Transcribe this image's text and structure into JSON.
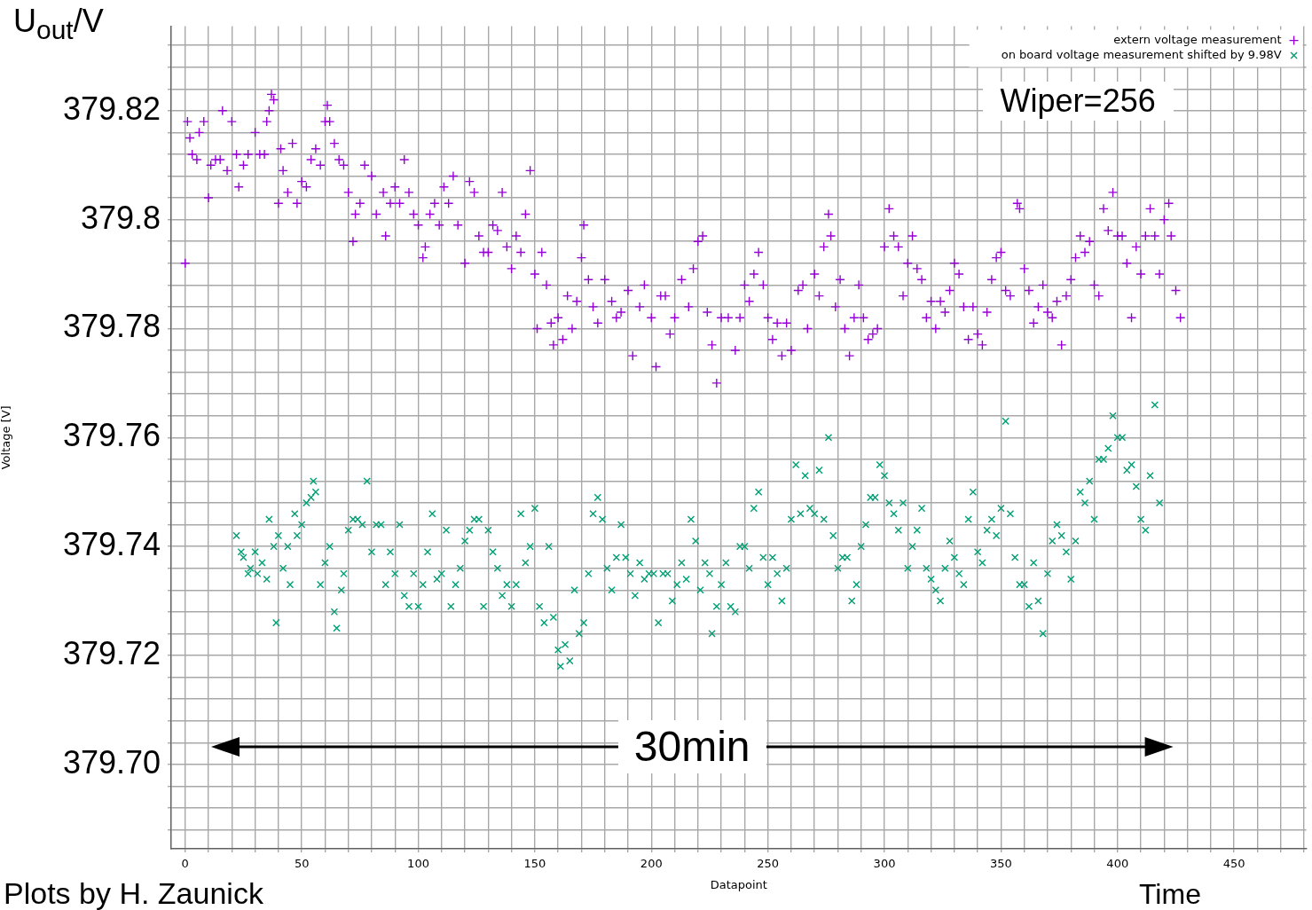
{
  "chart_data": {
    "type": "scatter",
    "xlabel": "Datapoint",
    "ylabel": "Voltage [V]",
    "legend": "top right",
    "grid": true,
    "annotations": [
      "U$_{out}$/V",
      "Wiper=256",
      "30min",
      "Plots by H. Zaunick",
      "Time"
    ],
    "xlim": [
      -6,
      481
    ],
    "xticks": [
      0,
      {
        "value": 10,
        "label": null
      },
      {
        "value": 20,
        "label": null
      },
      {
        "value": 30,
        "label": null
      },
      {
        "value": 40,
        "label": null
      },
      50,
      {
        "value": 60,
        "label": null
      },
      {
        "value": 70,
        "label": null
      },
      {
        "value": 80,
        "label": null
      },
      {
        "value": 90,
        "label": null
      },
      100,
      {
        "value": 110,
        "label": null
      },
      {
        "value": 120,
        "label": null
      },
      {
        "value": 130,
        "label": null
      },
      {
        "value": 140,
        "label": null
      },
      150,
      {
        "value": 160,
        "label": null
      },
      {
        "value": 170,
        "label": null
      },
      {
        "value": 180,
        "label": null
      },
      {
        "value": 190,
        "label": null
      },
      200,
      {
        "value": 210,
        "label": null
      },
      {
        "value": 220,
        "label": null
      },
      {
        "value": 230,
        "label": null
      },
      {
        "value": 240,
        "label": null
      },
      250,
      {
        "value": 260,
        "label": null
      },
      {
        "value": 270,
        "label": null
      },
      {
        "value": 280,
        "label": null
      },
      {
        "value": 290,
        "label": null
      },
      300,
      {
        "value": 310,
        "label": null
      },
      {
        "value": 320,
        "label": null
      },
      {
        "value": 330,
        "label": null
      },
      {
        "value": 340,
        "label": null
      },
      350,
      {
        "value": 360,
        "label": null
      },
      {
        "value": 370,
        "label": null
      },
      {
        "value": 380,
        "label": null
      },
      {
        "value": 390,
        "label": null
      },
      400,
      {
        "value": 410,
        "label": null
      },
      {
        "value": 420,
        "label": null
      },
      {
        "value": 430,
        "label": null
      },
      {
        "value": 440,
        "label": null
      },
      450,
      {
        "value": 460,
        "label": null
      },
      {
        "value": 470,
        "label": null
      },
      {
        "value": 480,
        "label": null
      }
    ],
    "ylim": [
      379.6845,
      379.8355
    ],
    "yticks": [
      {
        "value": 379.688,
        "label": null
      },
      {
        "value": 379.692,
        "label": null
      },
      {
        "value": 379.696,
        "label": null
      },
      {
        "value": 379.7,
        "label": "379.70"
      },
      {
        "value": 379.704,
        "label": null
      },
      {
        "value": 379.708,
        "label": null
      },
      {
        "value": 379.712,
        "label": null
      },
      {
        "value": 379.716,
        "label": null
      },
      379.72,
      {
        "value": 379.724,
        "label": null
      },
      {
        "value": 379.728,
        "label": null
      },
      {
        "value": 379.732,
        "label": null
      },
      {
        "value": 379.736,
        "label": null
      },
      379.74,
      {
        "value": 379.744,
        "label": null
      },
      {
        "value": 379.748,
        "label": null
      },
      {
        "value": 379.752,
        "label": null
      },
      {
        "value": 379.756,
        "label": null
      },
      379.76,
      {
        "value": 379.764,
        "label": null
      },
      {
        "value": 379.768,
        "label": null
      },
      {
        "value": 379.772,
        "label": null
      },
      {
        "value": 379.776,
        "label": null
      },
      379.78,
      {
        "value": 379.784,
        "label": null
      },
      {
        "value": 379.788,
        "label": null
      },
      {
        "value": 379.792,
        "label": null
      },
      {
        "value": 379.796,
        "label": null
      },
      379.8,
      {
        "value": 379.804,
        "label": null
      },
      {
        "value": 379.808,
        "label": null
      },
      {
        "value": 379.812,
        "label": null
      },
      {
        "value": 379.816,
        "label": null
      },
      379.82,
      {
        "value": 379.824,
        "label": null
      },
      {
        "value": 379.828,
        "label": null
      },
      {
        "value": 379.832,
        "label": null
      }
    ],
    "series": [
      {
        "name": "extern voltage measurement",
        "color": "#9400d3",
        "marker": "cross",
        "x": [
          0,
          1,
          2,
          3,
          5,
          6,
          8,
          10,
          11,
          13,
          15,
          16,
          18,
          20,
          22,
          23,
          25,
          27,
          30,
          32,
          34,
          35,
          36,
          37,
          38,
          40,
          41,
          42,
          44,
          46,
          48,
          50,
          52,
          54,
          56,
          58,
          60,
          61,
          62,
          64,
          66,
          68,
          70,
          72,
          73,
          75,
          77,
          80,
          82,
          85,
          86,
          88,
          90,
          92,
          94,
          96,
          98,
          100,
          102,
          103,
          105,
          107,
          109,
          111,
          113,
          115,
          117,
          120,
          122,
          124,
          126,
          128,
          130,
          132,
          134,
          136,
          138,
          140,
          142,
          144,
          146,
          148,
          150,
          151,
          153,
          155,
          157,
          158,
          160,
          162,
          164,
          166,
          168,
          170,
          171,
          173,
          175,
          177,
          180,
          183,
          185,
          187,
          190,
          192,
          195,
          197,
          200,
          202,
          204,
          206,
          208,
          210,
          213,
          216,
          218,
          220,
          222,
          224,
          226,
          228,
          230,
          233,
          236,
          238,
          240,
          242,
          244,
          246,
          248,
          250,
          252,
          254,
          256,
          258,
          260,
          263,
          265,
          267,
          270,
          272,
          274,
          276,
          277,
          279,
          281,
          283,
          285,
          287,
          289,
          291,
          293,
          295,
          297,
          300,
          302,
          304,
          306,
          308,
          310,
          312,
          314,
          316,
          318,
          320,
          322,
          324,
          326,
          328,
          330,
          332,
          334,
          336,
          338,
          340,
          342,
          344,
          346,
          348,
          350,
          352,
          354,
          357,
          358,
          360,
          362,
          364,
          366,
          368,
          370,
          372,
          374,
          376,
          378,
          380,
          382,
          384,
          386,
          388,
          390,
          392,
          394,
          396,
          398,
          400,
          402,
          404,
          406,
          408,
          410,
          412,
          414,
          416,
          418,
          420,
          422,
          423,
          425,
          427
        ],
        "values": [
          379.792,
          379.818,
          379.815,
          379.812,
          379.811,
          379.816,
          379.818,
          379.804,
          379.81,
          379.811,
          379.811,
          379.82,
          379.809,
          379.818,
          379.812,
          379.806,
          379.81,
          379.812,
          379.816,
          379.812,
          379.812,
          379.818,
          379.82,
          379.823,
          379.822,
          379.803,
          379.813,
          379.809,
          379.805,
          379.814,
          379.803,
          379.807,
          379.806,
          379.811,
          379.813,
          379.81,
          379.818,
          379.821,
          379.818,
          379.814,
          379.811,
          379.81,
          379.805,
          379.796,
          379.801,
          379.803,
          379.81,
          379.808,
          379.801,
          379.805,
          379.797,
          379.803,
          379.806,
          379.803,
          379.811,
          379.805,
          379.801,
          379.799,
          379.793,
          379.795,
          379.801,
          379.803,
          379.799,
          379.806,
          379.803,
          379.808,
          379.799,
          379.792,
          379.807,
          379.805,
          379.797,
          379.794,
          379.794,
          379.799,
          379.798,
          379.805,
          379.795,
          379.791,
          379.797,
          379.794,
          379.801,
          379.809,
          379.79,
          379.78,
          379.794,
          379.788,
          379.781,
          379.777,
          379.782,
          379.778,
          379.786,
          379.78,
          379.785,
          379.793,
          379.799,
          379.789,
          379.784,
          379.781,
          379.789,
          379.785,
          379.782,
          379.783,
          379.787,
          379.775,
          379.784,
          379.788,
          379.782,
          379.773,
          379.786,
          379.786,
          379.779,
          379.782,
          379.789,
          379.784,
          379.791,
          379.796,
          379.797,
          379.783,
          379.777,
          379.77,
          379.782,
          379.782,
          379.776,
          379.782,
          379.788,
          379.785,
          379.79,
          379.794,
          379.788,
          379.782,
          379.778,
          379.781,
          379.775,
          379.781,
          379.776,
          379.787,
          379.788,
          379.78,
          379.79,
          379.786,
          379.795,
          379.801,
          379.797,
          379.784,
          379.789,
          379.78,
          379.775,
          379.782,
          379.788,
          379.782,
          379.778,
          379.779,
          379.78,
          379.795,
          379.802,
          379.797,
          379.795,
          379.786,
          379.792,
          379.797,
          379.791,
          379.789,
          379.782,
          379.785,
          379.78,
          379.785,
          379.783,
          379.787,
          379.792,
          379.79,
          379.784,
          379.778,
          379.784,
          379.779,
          379.777,
          379.783,
          379.789,
          379.793,
          379.794,
          379.787,
          379.786,
          379.803,
          379.802,
          379.791,
          379.787,
          379.781,
          379.784,
          379.788,
          379.783,
          379.782,
          379.785,
          379.777,
          379.786,
          379.789,
          379.793,
          379.797,
          379.794,
          379.796,
          379.788,
          379.786,
          379.802,
          379.798,
          379.805,
          379.797,
          379.797,
          379.792,
          379.782,
          379.795,
          379.79,
          379.797,
          379.802,
          379.797,
          379.79,
          379.8,
          379.803,
          379.797,
          379.787,
          379.782
        ]
      },
      {
        "name": "on board voltage measurement shifted by 9.98V",
        "color": "#009e73",
        "marker": "x",
        "x": [
          22,
          24,
          25,
          27,
          28,
          30,
          31,
          33,
          35,
          36,
          38,
          39,
          40,
          42,
          44,
          45,
          47,
          48,
          50,
          52,
          54,
          55,
          56,
          58,
          60,
          62,
          64,
          65,
          67,
          68,
          70,
          72,
          74,
          76,
          78,
          80,
          82,
          84,
          86,
          88,
          90,
          92,
          94,
          96,
          98,
          100,
          102,
          104,
          106,
          108,
          110,
          112,
          114,
          116,
          118,
          120,
          122,
          124,
          126,
          128,
          130,
          132,
          134,
          136,
          138,
          140,
          142,
          144,
          146,
          148,
          150,
          152,
          154,
          156,
          158,
          160,
          161,
          163,
          165,
          167,
          169,
          171,
          173,
          175,
          177,
          179,
          181,
          183,
          185,
          187,
          189,
          191,
          193,
          195,
          197,
          199,
          201,
          203,
          205,
          207,
          209,
          211,
          213,
          215,
          217,
          219,
          221,
          223,
          225,
          226,
          228,
          230,
          232,
          234,
          236,
          238,
          240,
          242,
          244,
          246,
          248,
          250,
          252,
          254,
          256,
          258,
          260,
          262,
          264,
          266,
          268,
          270,
          272,
          274,
          276,
          278,
          280,
          282,
          284,
          286,
          288,
          290,
          292,
          294,
          296,
          298,
          300,
          302,
          304,
          306,
          308,
          310,
          312,
          314,
          316,
          318,
          320,
          322,
          324,
          326,
          328,
          330,
          332,
          334,
          336,
          338,
          340,
          342,
          344,
          346,
          348,
          350,
          352,
          354,
          356,
          358,
          360,
          362,
          364,
          366,
          368,
          370,
          372,
          374,
          376,
          378,
          380,
          382,
          384,
          386,
          388,
          390,
          392,
          394,
          396,
          398,
          400,
          402,
          404,
          406,
          408,
          410,
          412,
          414,
          416,
          418
        ],
        "values": [
          379.742,
          379.739,
          379.738,
          379.735,
          379.736,
          379.739,
          379.735,
          379.737,
          379.734,
          379.745,
          379.74,
          379.726,
          379.742,
          379.736,
          379.74,
          379.733,
          379.746,
          379.742,
          379.744,
          379.748,
          379.749,
          379.752,
          379.75,
          379.733,
          379.737,
          379.74,
          379.728,
          379.725,
          379.732,
          379.735,
          379.743,
          379.745,
          379.745,
          379.744,
          379.752,
          379.739,
          379.744,
          379.744,
          379.733,
          379.739,
          379.735,
          379.744,
          379.731,
          379.729,
          379.735,
          379.729,
          379.733,
          379.739,
          379.746,
          379.734,
          379.735,
          379.743,
          379.729,
          379.733,
          379.736,
          379.741,
          379.743,
          379.745,
          379.745,
          379.729,
          379.743,
          379.739,
          379.736,
          379.731,
          379.733,
          379.729,
          379.733,
          379.746,
          379.737,
          379.74,
          379.747,
          379.729,
          379.726,
          379.74,
          379.727,
          379.721,
          379.718,
          379.722,
          379.719,
          379.732,
          379.724,
          379.726,
          379.735,
          379.746,
          379.749,
          379.745,
          379.736,
          379.732,
          379.738,
          379.744,
          379.738,
          379.735,
          379.731,
          379.737,
          379.734,
          379.735,
          379.735,
          379.726,
          379.735,
          379.735,
          379.73,
          379.733,
          379.737,
          379.734,
          379.745,
          379.741,
          379.732,
          379.737,
          379.735,
          379.724,
          379.729,
          379.733,
          379.737,
          379.729,
          379.728,
          379.74,
          379.74,
          379.736,
          379.747,
          379.75,
          379.738,
          379.733,
          379.738,
          379.735,
          379.73,
          379.736,
          379.745,
          379.755,
          379.746,
          379.753,
          379.747,
          379.746,
          379.754,
          379.745,
          379.76,
          379.742,
          379.736,
          379.738,
          379.738,
          379.73,
          379.733,
          379.74,
          379.744,
          379.749,
          379.749,
          379.755,
          379.753,
          379.748,
          379.746,
          379.743,
          379.748,
          379.736,
          379.74,
          379.743,
          379.747,
          379.736,
          379.734,
          379.732,
          379.73,
          379.736,
          379.741,
          379.738,
          379.735,
          379.733,
          379.745,
          379.75,
          379.739,
          379.737,
          379.743,
          379.745,
          379.742,
          379.747,
          379.763,
          379.746,
          379.738,
          379.733,
          379.733,
          379.729,
          379.737,
          379.73,
          379.724,
          379.735,
          379.741,
          379.744,
          379.742,
          379.739,
          379.734,
          379.741,
          379.75,
          379.748,
          379.752,
          379.745,
          379.756,
          379.756,
          379.758,
          379.764,
          379.76,
          379.76,
          379.754,
          379.755,
          379.751,
          379.745,
          379.743,
          379.753,
          379.766,
          379.748
        ]
      }
    ]
  }
}
